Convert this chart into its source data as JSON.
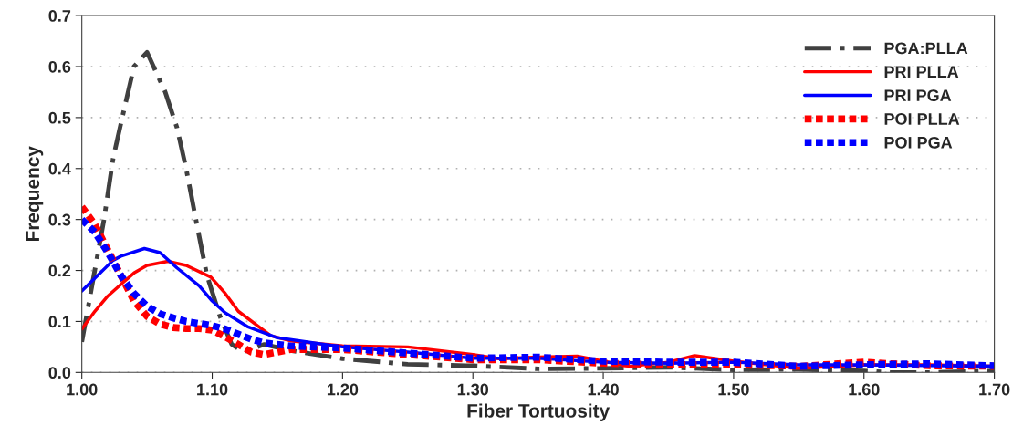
{
  "chart_data": {
    "type": "line",
    "xlabel": "Fiber Tortuosity",
    "ylabel": "Frequency",
    "xlim": [
      1.0,
      1.7
    ],
    "ylim": [
      0,
      0.7
    ],
    "xticks": [
      {
        "value": 1.0,
        "label": "1.00"
      },
      {
        "value": 1.1,
        "label": "1.10"
      },
      {
        "value": 1.2,
        "label": "1.20"
      },
      {
        "value": 1.3,
        "label": "1.30"
      },
      {
        "value": 1.4,
        "label": "1.40"
      },
      {
        "value": 1.5,
        "label": "1.50"
      },
      {
        "value": 1.6,
        "label": "1.60"
      },
      {
        "value": 1.7,
        "label": "1.70"
      }
    ],
    "yticks": [
      {
        "value": 0,
        "label": "0.0"
      },
      {
        "value": 0.1,
        "label": "0.1"
      },
      {
        "value": 0.2,
        "label": "0.2"
      },
      {
        "value": 0.3,
        "label": "0.3"
      },
      {
        "value": 0.4,
        "label": "0.4"
      },
      {
        "value": 0.5,
        "label": "0.5"
      },
      {
        "value": 0.6,
        "label": "0.6"
      },
      {
        "value": 0.7,
        "label": "0.7"
      }
    ],
    "grid": "y",
    "legend": "top right",
    "marker": "none",
    "series": [
      {
        "name": "PGA:PLLA",
        "color": "#404040",
        "line_style": "dashed",
        "x": [
          1.0,
          1.017,
          1.024,
          1.031,
          1.04,
          1.05,
          1.064,
          1.073,
          1.08,
          1.089,
          1.096,
          1.106,
          1.115,
          1.124,
          1.14,
          1.16,
          1.2,
          1.25,
          1.3,
          1.35,
          1.4,
          1.45,
          1.5,
          1.55,
          1.6,
          1.62,
          1.65,
          1.7
        ],
        "values": [
          0.06,
          0.3,
          0.42,
          0.5,
          0.6,
          0.628,
          0.55,
          0.48,
          0.4,
          0.28,
          0.19,
          0.11,
          0.055,
          0.04,
          0.055,
          0.043,
          0.027,
          0.016,
          0.013,
          0.007,
          0.008,
          0.01,
          0.005,
          0.006,
          0.003,
          0.0,
          0.0,
          0.003
        ]
      },
      {
        "name": "PRI PLLA",
        "color": "#ff0000",
        "line_style": "solid",
        "x": [
          1.0,
          1.01,
          1.02,
          1.031,
          1.04,
          1.05,
          1.066,
          1.08,
          1.099,
          1.11,
          1.12,
          1.145,
          1.16,
          1.2,
          1.25,
          1.3,
          1.32,
          1.35,
          1.38,
          1.4,
          1.42,
          1.45,
          1.47,
          1.5,
          1.55,
          1.6,
          1.65,
          1.7
        ],
        "values": [
          0.085,
          0.12,
          0.15,
          0.175,
          0.195,
          0.21,
          0.218,
          0.21,
          0.187,
          0.155,
          0.12,
          0.072,
          0.062,
          0.052,
          0.05,
          0.035,
          0.027,
          0.03,
          0.032,
          0.022,
          0.012,
          0.02,
          0.033,
          0.022,
          0.008,
          0.015,
          0.015,
          0.012
        ]
      },
      {
        "name": "PRI PGA",
        "color": "#0000ff",
        "line_style": "solid",
        "x": [
          1.0,
          1.01,
          1.024,
          1.03,
          1.048,
          1.06,
          1.073,
          1.09,
          1.1,
          1.11,
          1.127,
          1.15,
          1.2,
          1.25,
          1.3,
          1.35,
          1.4,
          1.45,
          1.5,
          1.55,
          1.6,
          1.7
        ],
        "values": [
          0.16,
          0.185,
          0.22,
          0.228,
          0.243,
          0.235,
          0.205,
          0.17,
          0.14,
          0.117,
          0.09,
          0.068,
          0.05,
          0.04,
          0.028,
          0.028,
          0.02,
          0.018,
          0.02,
          0.015,
          0.015,
          0.012
        ]
      },
      {
        "name": "POI PLLA",
        "color": "#ff0000",
        "line_style": "dotted",
        "x": [
          1.0,
          1.01,
          1.02,
          1.03,
          1.04,
          1.05,
          1.06,
          1.07,
          1.08,
          1.09,
          1.1,
          1.11,
          1.12,
          1.13,
          1.14,
          1.16,
          1.2,
          1.25,
          1.3,
          1.35,
          1.4,
          1.45,
          1.5,
          1.55,
          1.6,
          1.65,
          1.7
        ],
        "values": [
          0.325,
          0.29,
          0.24,
          0.19,
          0.14,
          0.11,
          0.095,
          0.088,
          0.086,
          0.086,
          0.083,
          0.07,
          0.055,
          0.04,
          0.035,
          0.045,
          0.045,
          0.035,
          0.025,
          0.025,
          0.018,
          0.015,
          0.015,
          0.012,
          0.02,
          0.013,
          0.012
        ]
      },
      {
        "name": "POI PGA",
        "color": "#0000ff",
        "line_style": "dotted",
        "x": [
          1.0,
          1.01,
          1.02,
          1.03,
          1.04,
          1.05,
          1.06,
          1.07,
          1.08,
          1.09,
          1.1,
          1.11,
          1.12,
          1.13,
          1.14,
          1.16,
          1.2,
          1.25,
          1.3,
          1.35,
          1.4,
          1.45,
          1.5,
          1.55,
          1.6,
          1.65,
          1.7
        ],
        "values": [
          0.3,
          0.275,
          0.235,
          0.19,
          0.155,
          0.13,
          0.115,
          0.107,
          0.1,
          0.096,
          0.092,
          0.085,
          0.075,
          0.065,
          0.058,
          0.052,
          0.048,
          0.038,
          0.028,
          0.03,
          0.022,
          0.02,
          0.02,
          0.012,
          0.015,
          0.017,
          0.013
        ]
      }
    ]
  }
}
